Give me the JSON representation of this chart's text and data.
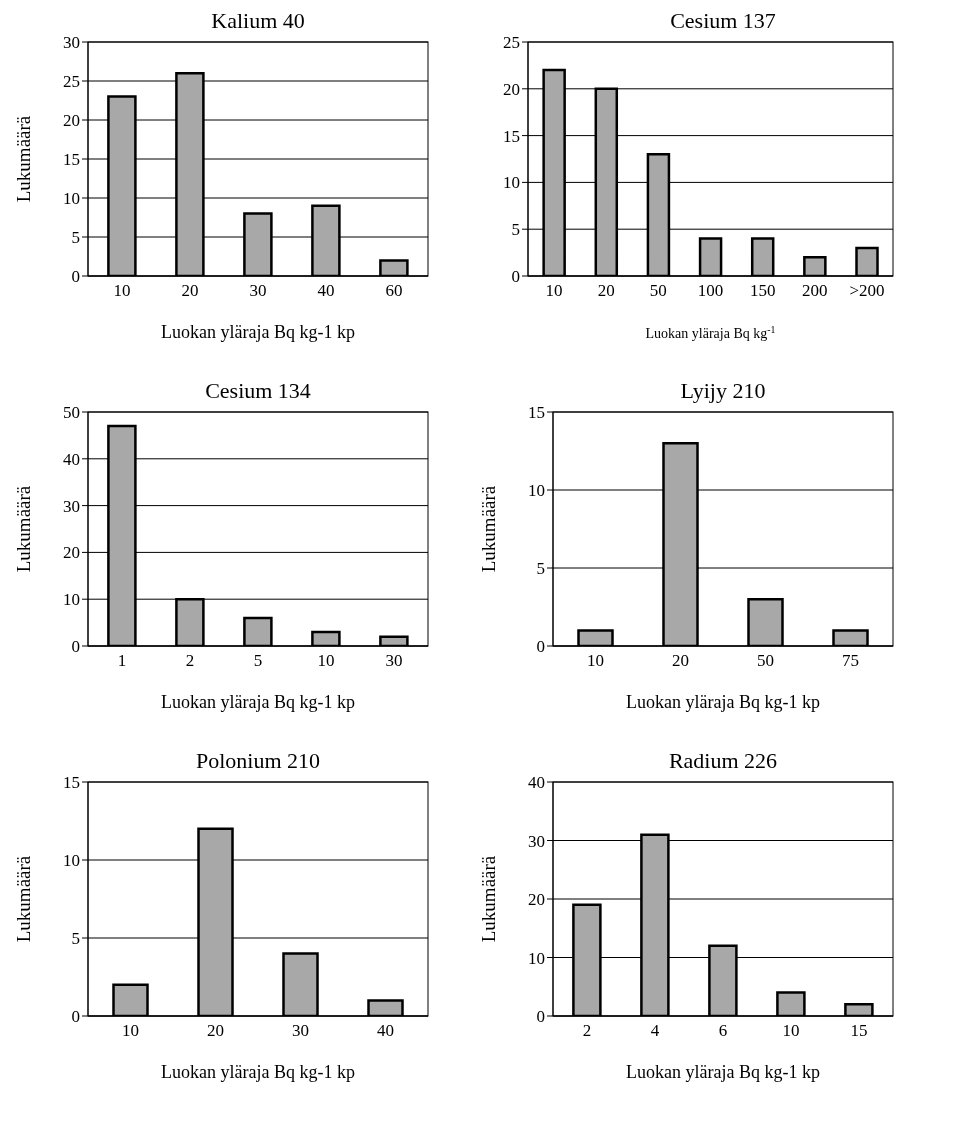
{
  "chart_data": [
    {
      "type": "bar",
      "title": "Kalium 40",
      "xlabel": "Luokan yläraja Bq kg-1 kp",
      "ylabel": "Lukumäärä",
      "categories": [
        "10",
        "20",
        "30",
        "40",
        "60"
      ],
      "values": [
        23,
        26,
        8,
        9,
        2
      ],
      "color": "#a8a8a8",
      "ylim": [
        0,
        30
      ],
      "yticks": [
        0,
        5,
        10,
        15,
        20,
        25,
        30
      ],
      "grid": "y"
    },
    {
      "type": "bar",
      "title": "Cesium 137",
      "xlabel": "Luokan yläraja Bq kg$^{-1}$",
      "categories": [
        "10",
        "20",
        "50",
        "100",
        "150",
        "200",
        ">200"
      ],
      "values": [
        22,
        20,
        13,
        4,
        4,
        2,
        3
      ],
      "color": "#a8a8a8",
      "ylim": [
        0,
        25
      ],
      "yticks": [
        0,
        5,
        10,
        15,
        20,
        25
      ],
      "grid": "y"
    },
    {
      "type": "bar",
      "title": "Cesium 134",
      "xlabel": "Luokan yläraja Bq kg-1 kp",
      "ylabel": "Lukumäärä",
      "categories": [
        "1",
        "2",
        "5",
        "10",
        "30"
      ],
      "values": [
        47,
        10,
        6,
        3,
        2
      ],
      "color": "#a8a8a8",
      "ylim": [
        0,
        50
      ],
      "yticks": [
        0,
        10,
        20,
        30,
        40,
        50
      ],
      "grid": "y"
    },
    {
      "type": "bar",
      "title": "Lyijy 210",
      "xlabel": "Luokan yläraja Bq kg-1 kp",
      "ylabel": "Lukumäärä",
      "categories": [
        "10",
        "20",
        "50",
        "75"
      ],
      "values": [
        1,
        13,
        3,
        1
      ],
      "color": "#a8a8a8",
      "ylim": [
        0,
        15
      ],
      "yticks": [
        0,
        5,
        10,
        15
      ],
      "grid": "y"
    },
    {
      "type": "bar",
      "title": "Polonium 210",
      "xlabel": "Luokan yläraja Bq kg-1 kp",
      "ylabel": "Lukumäärä",
      "categories": [
        "10",
        "20",
        "30",
        "40"
      ],
      "values": [
        2,
        12,
        4,
        1
      ],
      "color": "#a8a8a8",
      "ylim": [
        0,
        15
      ],
      "yticks": [
        0,
        5,
        10,
        15
      ],
      "grid": "y"
    },
    {
      "type": "bar",
      "title": "Radium 226",
      "xlabel": "Luokan yläraja Bq kg-1 kp",
      "ylabel": "Lukumäärä",
      "categories": [
        "2",
        "4",
        "6",
        "10",
        "15"
      ],
      "values": [
        19,
        31,
        12,
        4,
        2
      ],
      "color": "#a8a8a8",
      "ylim": [
        0,
        40
      ],
      "yticks": [
        0,
        10,
        20,
        30,
        40
      ],
      "grid": "y"
    }
  ]
}
